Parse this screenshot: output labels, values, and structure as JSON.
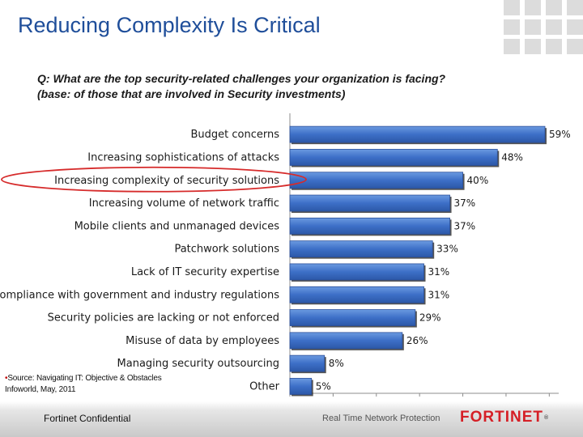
{
  "slide": {
    "title": "Reducing Complexity Is Critical",
    "question_line1": "Q: What are the top security-related challenges your organization is facing?",
    "question_line2": "(base: of those that are involved in Security investments)",
    "source_line1": "Source: Navigating IT: Objective & Obstacles",
    "source_line2": "Infoworld, May, 2011",
    "footer_left": "Fortinet Confidential",
    "footer_middle": "Real Time Network Protection",
    "brand": "FORTINET",
    "brand_mark": "®",
    "highlight_color": "#d62b2b",
    "title_color": "#1f4e9a"
  },
  "chart_data": {
    "type": "bar",
    "orientation": "horizontal",
    "title": "",
    "xlabel": "",
    "ylabel": "",
    "categories": [
      "Budget concerns",
      "Increasing sophistications of attacks",
      "Increasing complexity of security solutions",
      "Increasing volume of network traffic",
      "Mobile clients and unmanaged devices",
      "Patchwork solutions",
      "Lack of IT security expertise",
      "Compliance with government and industry regulations",
      "Security policies are lacking or not enforced",
      "Misuse of data by employees",
      "Managing security outsourcing",
      "Other"
    ],
    "values": [
      59,
      48,
      40,
      37,
      37,
      33,
      31,
      31,
      29,
      26,
      8,
      5
    ],
    "labels": [
      "59%",
      "48%",
      "40%",
      "37%",
      "37%",
      "33%",
      "31%",
      "31%",
      "29%",
      "26%",
      "8%",
      "5%"
    ],
    "xlim": [
      0,
      60
    ],
    "highlighted_category": "Increasing complexity of security solutions",
    "bar_color": "#3d6fc7",
    "grid": false
  }
}
